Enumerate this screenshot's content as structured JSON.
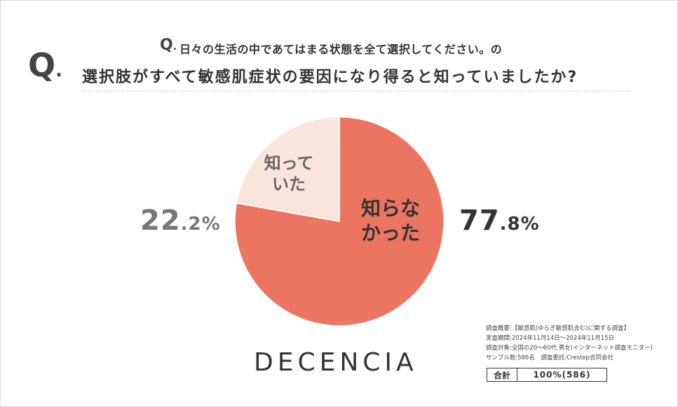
{
  "header": {
    "q_mark_big": "Q",
    "q_dot_big": ".",
    "q_mark_small": "Q",
    "q_dot_small": ".",
    "title_line1": "日々の生活の中であてはまる状態を全て選択してください。の",
    "title_line2": "選択肢がすべて敏感肌症状の要因になり得ると知っていましたか?"
  },
  "chart_data": {
    "type": "pie",
    "title": "",
    "slices": [
      {
        "label_lines": [
          "知らな",
          "かった"
        ],
        "value": 77.8,
        "value_int": "77",
        "value_dec": ".8%",
        "color": "#ec7561"
      },
      {
        "label_lines": [
          "知って",
          "いた"
        ],
        "value": 22.2,
        "value_int": "22",
        "value_dec": ".2%",
        "color": "#fae4dd"
      }
    ],
    "start": "12 o'clock",
    "direction": "clockwise"
  },
  "brand": "DECENCIA",
  "survey": {
    "lines": [
      "調査概要:【敏感肌(ゆらぎ敏感肌含む)に関する調査】",
      "実査期間:2024年11月14日〜2024年11月15日",
      "調査対象:全国の20〜60代 男女(インターネット調査モニター)",
      "サンプル数:586名　調査委託:Crestep合同会社"
    ],
    "total_label": "合計",
    "total_value": "100%(586)"
  }
}
